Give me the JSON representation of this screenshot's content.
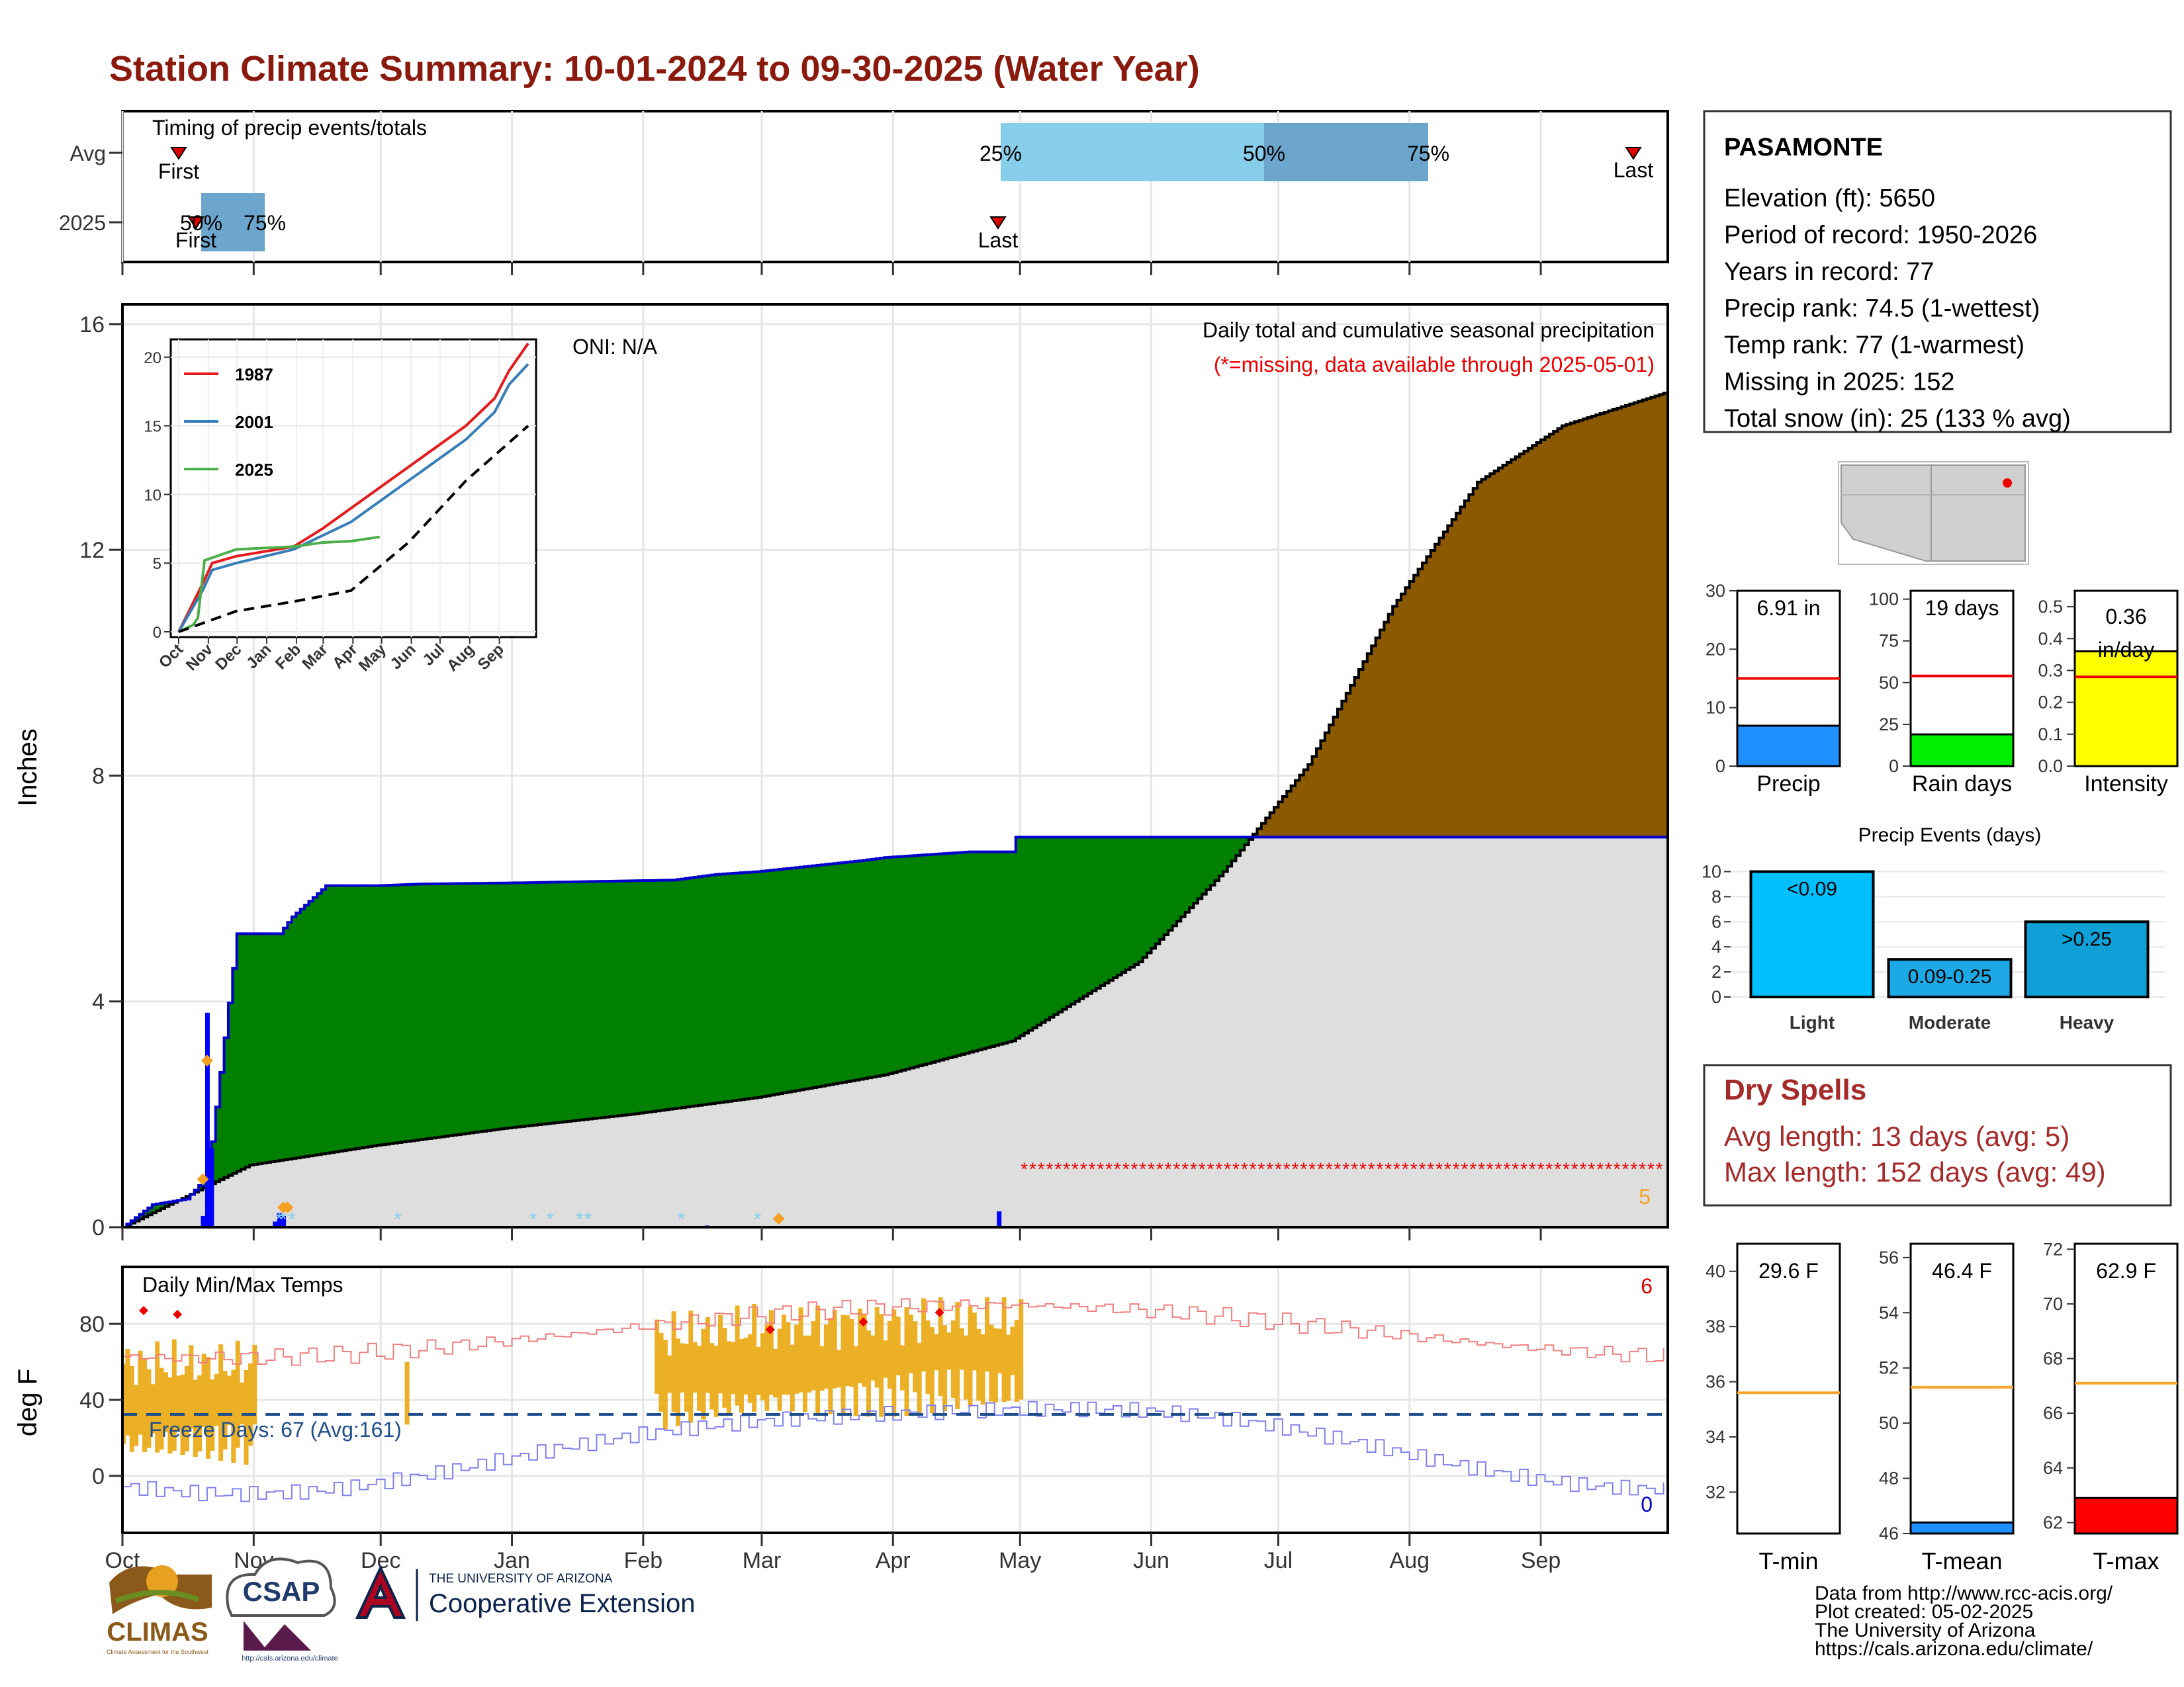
{
  "title": "Station Climate Summary: 10-01-2024 to 09-30-2025 (Water Year)",
  "colors": {
    "title": "#8B1A0E",
    "cum_fill": "#8B5A00",
    "green_fill": "#008000",
    "cum_outline": "#0000CC",
    "avg_fill": "#DEDEDE",
    "missing": "#EE0000",
    "temp_band": "#EBB026",
    "max_line": "#F08080",
    "min_line": "#8080EE",
    "freeze_line": "#1F4E8C",
    "precip_bar": "#1E90FF",
    "rain_bar": "#00EE00",
    "intensity_bar": "#FFFF00",
    "light_bar": "#00BFFF",
    "moderate_bar": "#1CA9E6",
    "heavy_bar": "#0EA0D6",
    "dry_spell": "#A52A2A",
    "tmin_line": "#F4A52A",
    "tmax_bar": "#FF0000"
  },
  "timing": {
    "label": "Timing of precip events/totals",
    "row_labels": [
      "Avg",
      "2025"
    ],
    "avg_labels": {
      "first": "First",
      "p25": "25%",
      "p50": "50%",
      "p75": "75%",
      "last": "Last"
    },
    "y2025_labels": {
      "first": "First",
      "p50": "50%",
      "p75": "75%",
      "last": "Last"
    }
  },
  "main": {
    "ylabel": "Inches",
    "yticks": [
      "0",
      "4",
      "8",
      "12",
      "16"
    ],
    "oni": "ONI: N/A",
    "caption": "Daily total and cumulative seasonal precipitation",
    "missing_note": "(*=missing, data available through 2025-05-01)",
    "count_right": "5"
  },
  "inset": {
    "yticks": [
      "0",
      "5",
      "10",
      "15",
      "20"
    ],
    "months": [
      "Oct",
      "Nov",
      "Dec",
      "Jan",
      "Feb",
      "Mar",
      "Apr",
      "May",
      "Jun",
      "Jul",
      "Aug",
      "Sep"
    ],
    "legend": [
      "1987",
      "2001",
      "2025"
    ]
  },
  "temps": {
    "title": "Daily Min/Max Temps",
    "ylabel": "deg F",
    "yticks": [
      "0",
      "40",
      "80"
    ],
    "freeze": "Freeze Days: 67 (Avg:161)",
    "count_top": "6",
    "count_bottom": "0"
  },
  "months": [
    "Oct",
    "Nov",
    "Dec",
    "Jan",
    "Feb",
    "Mar",
    "Apr",
    "May",
    "Jun",
    "Jul",
    "Aug",
    "Sep"
  ],
  "station": {
    "name": "PASAMONTE",
    "lines": [
      "Elevation (ft): 5650",
      "Period of record: 1950-2026",
      "Years in record: 77",
      "Precip rank: 74.5 (1-wettest)",
      "Temp rank: 77 (1-warmest)",
      "Missing in 2025: 152",
      "Total snow (in): 25 (133 % avg)"
    ]
  },
  "small_bars": [
    {
      "label": "Precip",
      "value_text": "6.91 in",
      "value": 6.91,
      "avg": 15.0,
      "max": 30,
      "ticks": [
        "0",
        "10",
        "20",
        "30"
      ]
    },
    {
      "label": "Rain days",
      "value_text": "19 days",
      "value": 19,
      "avg": 54,
      "max": 105,
      "ticks": [
        "0",
        "25",
        "50",
        "75",
        "100"
      ]
    },
    {
      "label": "Intensity",
      "value_text": "0.36",
      "value_text2": "in/day",
      "value": 0.36,
      "avg": 0.28,
      "max": 0.55,
      "ticks": [
        "0.0",
        "0.1",
        "0.2",
        "0.3",
        "0.4",
        "0.5"
      ]
    }
  ],
  "events": {
    "title": "Precip Events (days)",
    "yticks": [
      "0",
      "2",
      "4",
      "6",
      "8",
      "10"
    ],
    "categories": [
      "Light",
      "Moderate",
      "Heavy"
    ],
    "labels": [
      "<0.09",
      "0.09-0.25",
      ">0.25"
    ],
    "values": [
      10,
      3,
      6
    ]
  },
  "dry_spells": {
    "title": "Dry Spells",
    "lines": [
      "Avg length: 13 days (avg: 5)",
      "Max length: 152 days (avg: 49)"
    ]
  },
  "temp_bars": [
    {
      "label": "T-min",
      "value_text": "29.6 F",
      "value": 29.6,
      "avg": 35.6,
      "min": 30.5,
      "max": 41,
      "ticks": [
        "32",
        "34",
        "36",
        "38",
        "40"
      ]
    },
    {
      "label": "T-mean",
      "value_text": "46.4 F",
      "value": 46.4,
      "avg": 51.3,
      "min": 46,
      "max": 56.5,
      "ticks": [
        "46",
        "48",
        "50",
        "52",
        "54",
        "56"
      ]
    },
    {
      "label": "T-max",
      "value_text": "62.9 F",
      "value": 62.9,
      "avg": 67.1,
      "min": 61.6,
      "max": 72.2,
      "ticks": [
        "62",
        "64",
        "66",
        "68",
        "70",
        "72"
      ]
    }
  ],
  "footer": [
    "Data from http://www.rcc-acis.org/",
    "Plot created: 05-02-2025",
    "The University of Arizona",
    "https://cals.arizona.edu/climate/"
  ],
  "logos": {
    "climas": "CLIMAS",
    "climas_sub": "Climate Assessment for the Southwest",
    "csap": "CSAP",
    "csap_url": "http://cals.arizona.edu/climate",
    "ua_small": "THE UNIVERSITY OF ARIZONA",
    "ua_big": "Cooperative Extension"
  },
  "chart_data": [
    {
      "type": "area",
      "title": "Daily total and cumulative seasonal precipitation",
      "ylabel": "Inches",
      "ylim": [
        0,
        16
      ],
      "x_categories": [
        "Oct",
        "Nov",
        "Dec",
        "Jan",
        "Feb",
        "Mar",
        "Apr",
        "May",
        "Jun",
        "Jul",
        "Aug",
        "Sep"
      ],
      "series": [
        {
          "name": "2025",
          "x": [
            0,
            7,
            15,
            20,
            27,
            37,
            40,
            48,
            60,
            70,
            92,
            130,
            140,
            150,
            175,
            180,
            190,
            200,
            210,
            211,
            214,
            365
          ],
          "y": [
            0,
            0.4,
            0.5,
            0.9,
            5.2,
            5.2,
            5.5,
            6.05,
            6.05,
            6.08,
            6.1,
            6.15,
            6.25,
            6.3,
            6.5,
            6.55,
            6.6,
            6.65,
            6.65,
            6.91,
            6.91,
            6.91
          ]
        },
        {
          "x": [
            0,
            30,
            60,
            90,
            120,
            150,
            180,
            210,
            240,
            260,
            280,
            300,
            320,
            340,
            365
          ],
          "y": [
            0,
            1.1,
            1.45,
            1.75,
            2.0,
            2.3,
            2.7,
            3.3,
            4.7,
            6.3,
            8.2,
            11.0,
            13.2,
            14.2,
            14.8
          ]
        }
      ],
      "daily_precip": [
        {
          "day": 19,
          "value": 0.2
        },
        {
          "day": 20,
          "value": 3.8
        },
        {
          "day": 21,
          "value": 1.4
        },
        {
          "day": 36,
          "value": 0.1
        },
        {
          "day": 37,
          "value": 0.25
        },
        {
          "day": 38,
          "value": 0.2
        },
        {
          "day": 138,
          "value": 0.03
        },
        {
          "day": 207,
          "value": 0.28
        }
      ],
      "missing_days_from": 213
    },
    {
      "type": "line",
      "title": "",
      "ylim": [
        0,
        21
      ],
      "series": [
        {
          "name": "1987",
          "x": [
            0,
            25,
            35,
            60,
            120,
            150,
            180,
            240,
            300,
            330,
            345,
            365
          ],
          "y": [
            0,
            3.5,
            5,
            5.5,
            6.2,
            7.5,
            9,
            12,
            15,
            17,
            19,
            21
          ]
        },
        {
          "name": "2001",
          "x": [
            0,
            25,
            35,
            60,
            120,
            150,
            180,
            240,
            300,
            330,
            345,
            365
          ],
          "y": [
            0,
            3,
            4.5,
            5,
            6,
            7,
            8,
            11,
            14,
            16,
            18,
            19.5
          ]
        },
        {
          "name": "2025",
          "x": [
            0,
            15,
            20,
            27,
            60,
            120,
            150,
            180,
            210
          ],
          "y": [
            0,
            0.5,
            1,
            5.2,
            6,
            6.2,
            6.5,
            6.6,
            6.91
          ]
        },
        {
          "x": [
            0,
            60,
            120,
            180,
            240,
            300,
            365
          ],
          "y": [
            0,
            1.5,
            2.2,
            3,
            6.5,
            11,
            15
          ]
        }
      ]
    },
    {
      "type": "bar",
      "title": "Precip Events (days)",
      "categories": [
        "Light",
        "Moderate",
        "Heavy"
      ],
      "values": [
        10,
        3,
        6
      ],
      "ylim": [
        0,
        10.5
      ]
    }
  ]
}
